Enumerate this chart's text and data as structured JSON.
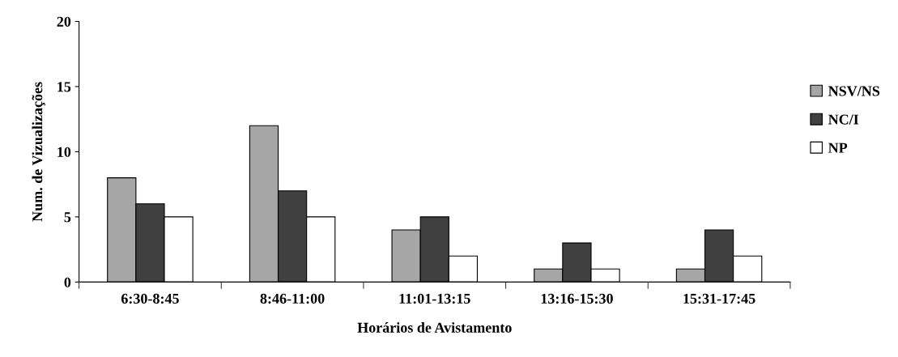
{
  "chart_data": {
    "type": "bar",
    "xlabel": "Horários de Avistamento",
    "ylabel": "Num. de Vizualizações",
    "categories": [
      "6:30-8:45",
      "8:46-11:00",
      "11:01-13:15",
      "13:16-15:30",
      "15:31-17:45"
    ],
    "series": [
      {
        "name": "NSV/NS",
        "color": "#a6a6a6",
        "values": [
          8,
          12,
          4,
          1,
          1
        ]
      },
      {
        "name": "NC/I",
        "color": "#404040",
        "values": [
          6,
          7,
          5,
          3,
          4
        ]
      },
      {
        "name": "NP",
        "color": "#ffffff",
        "values": [
          5,
          5,
          2,
          1,
          2
        ]
      }
    ],
    "ylim": [
      0,
      20
    ],
    "yticks": [
      0,
      5,
      10,
      15,
      20
    ],
    "grid": false,
    "legend": "right"
  }
}
